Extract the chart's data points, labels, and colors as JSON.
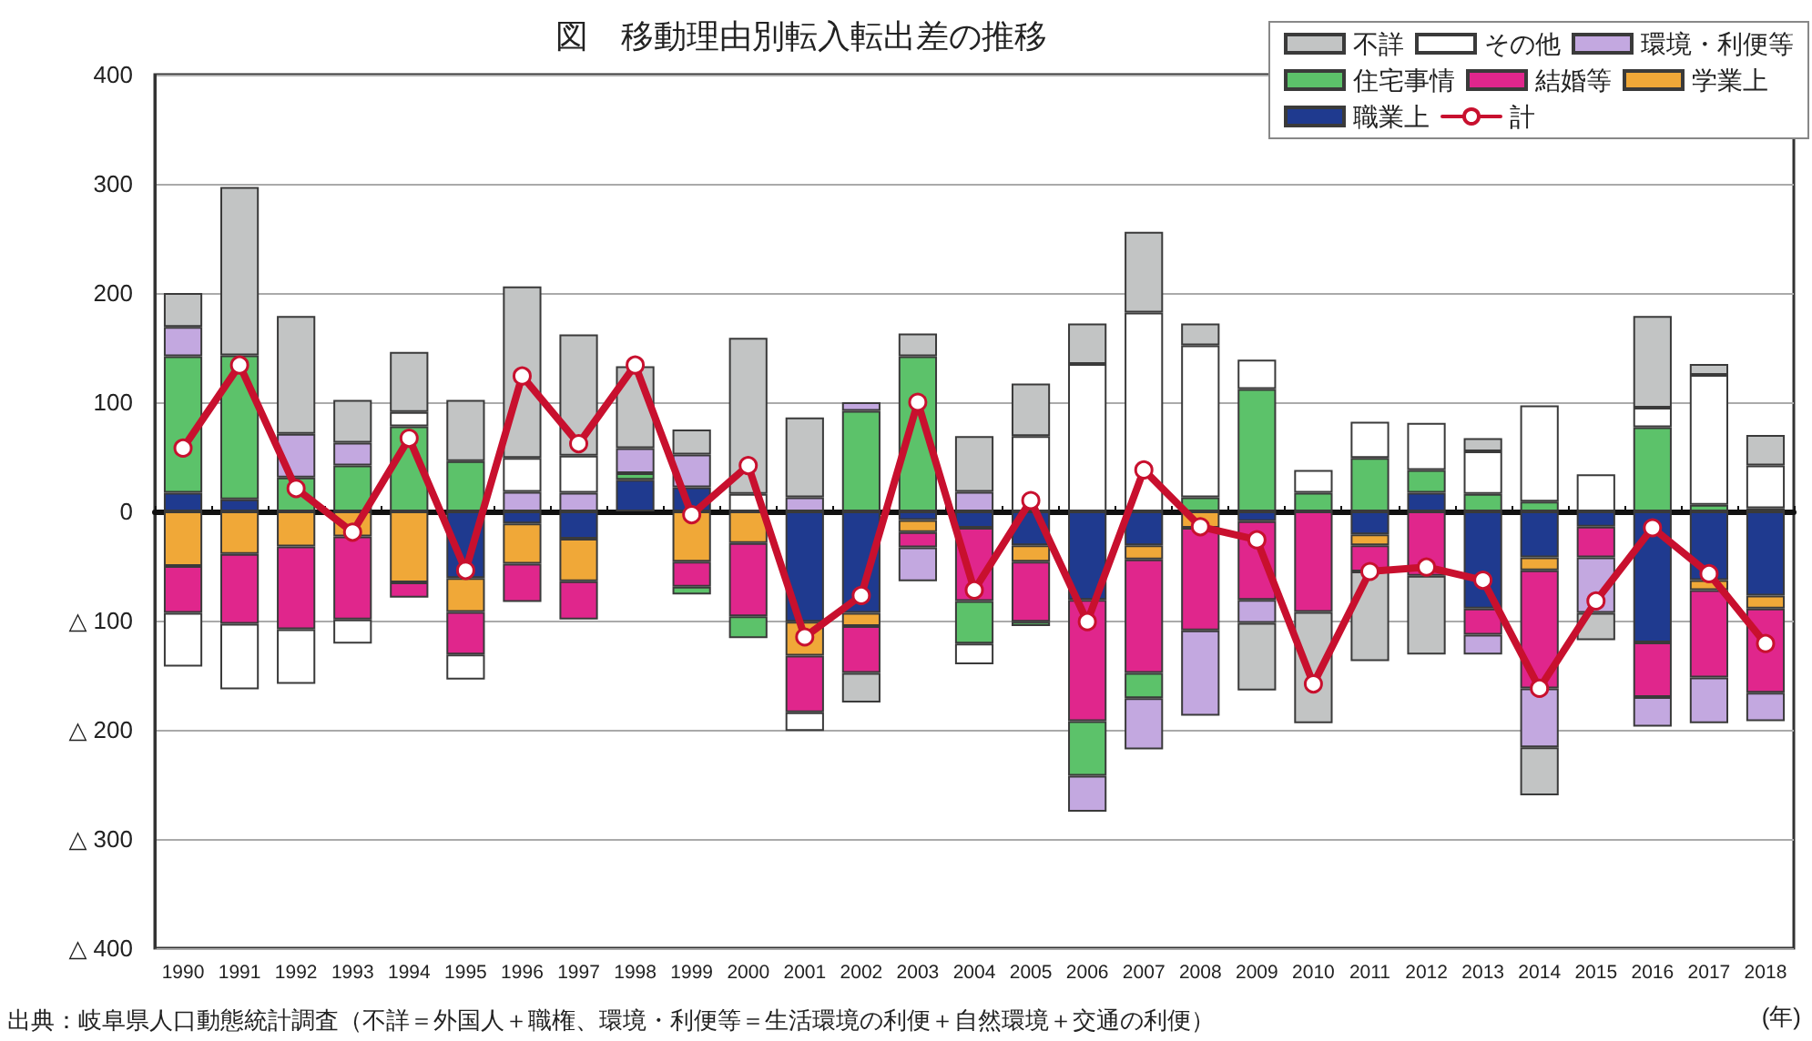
{
  "chart_data": {
    "type": "bar",
    "stacked": true,
    "title": "図　移動理由別転入転出差の推移",
    "xlabel": "(年)",
    "annotations": [
      "出典：岐阜県人口動態統計調査（不詳＝外国人＋職権、環境・利便等＝生活環境の利便＋自然環境＋交通の利便）"
    ],
    "categories": [
      "1990",
      "1991",
      "1992",
      "1993",
      "1994",
      "1995",
      "1996",
      "1997",
      "1998",
      "1999",
      "2000",
      "2001",
      "2002",
      "2003",
      "2004",
      "2005",
      "2006",
      "2007",
      "2008",
      "2009",
      "2010",
      "2011",
      "2012",
      "2013",
      "2014",
      "2015",
      "2016",
      "2017",
      "2018"
    ],
    "series": [
      {
        "name": "職業上",
        "color": "#1f3a8f",
        "values": [
          17,
          11,
          null,
          null,
          null,
          -61,
          -11,
          -25,
          29,
          22,
          null,
          -101,
          -93,
          -8,
          -15,
          -31,
          -81,
          -31,
          null,
          -9,
          null,
          -21,
          17,
          -89,
          -42,
          -14,
          -120,
          -63,
          -77
        ]
      },
      {
        "name": "学業上",
        "color": "#f0a838",
        "values": [
          -50,
          -39,
          -32,
          -23,
          -65,
          -31,
          -37,
          -39,
          null,
          -46,
          -29,
          -31,
          -12,
          -11,
          null,
          -15,
          null,
          -13,
          -15,
          null,
          null,
          -10,
          null,
          null,
          -12,
          null,
          null,
          -9,
          -12
        ]
      },
      {
        "name": "結婚等",
        "color": "#e0268c",
        "values": [
          -43,
          -64,
          -76,
          -76,
          -14,
          -39,
          -35,
          -35,
          null,
          -23,
          -67,
          -52,
          -43,
          -14,
          -67,
          -55,
          -111,
          -104,
          -94,
          -72,
          -92,
          -24,
          -59,
          -24,
          -108,
          -28,
          -50,
          -80,
          -77
        ]
      },
      {
        "name": "住宅事情",
        "color": "#5cc26a",
        "values": [
          125,
          132,
          31,
          42,
          78,
          46,
          null,
          null,
          6,
          -7,
          -20,
          null,
          92,
          142,
          -39,
          -4,
          -50,
          -23,
          13,
          112,
          17,
          49,
          21,
          16,
          9,
          null,
          77,
          6,
          3
        ]
      },
      {
        "name": "環境・利便等",
        "color": "#c3a8e0",
        "values": [
          27,
          null,
          40,
          21,
          null,
          null,
          18,
          17,
          23,
          30,
          null,
          13,
          8,
          -31,
          18,
          null,
          -33,
          -47,
          -78,
          -21,
          null,
          null,
          null,
          -18,
          -54,
          -51,
          -27,
          -42,
          -26
        ]
      },
      {
        "name": "その他",
        "color": "#ffffff",
        "values": [
          -49,
          -60,
          -50,
          -22,
          13,
          -23,
          31,
          34,
          null,
          null,
          16,
          -17,
          null,
          null,
          -19,
          69,
          135,
          182,
          139,
          27,
          21,
          33,
          43,
          39,
          88,
          34,
          18,
          119,
          39
        ]
      },
      {
        "name": "不詳",
        "color": "#c2c4c4",
        "values": [
          31,
          154,
          108,
          39,
          55,
          56,
          157,
          111,
          75,
          23,
          143,
          73,
          -27,
          21,
          51,
          48,
          37,
          74,
          20,
          -62,
          -102,
          -82,
          -72,
          12,
          -44,
          -25,
          84,
          10,
          28
        ]
      },
      {
        "name": "計",
        "type": "line",
        "color": "#c8102e",
        "marker": "circle",
        "values": [
          58,
          134,
          21,
          -19,
          67,
          -54,
          124,
          62,
          134,
          -3,
          42,
          -115,
          -77,
          100,
          -72,
          10,
          -101,
          38,
          -14,
          -26,
          -158,
          -55,
          -51,
          -63,
          -162,
          -82,
          -15,
          -57,
          -121
        ]
      }
    ],
    "ylim": [
      -400,
      400
    ],
    "yticks": [
      {
        "value": -400,
        "label": "△ 400"
      },
      {
        "value": -300,
        "label": "△ 300"
      },
      {
        "value": -200,
        "label": "△ 200"
      },
      {
        "value": -100,
        "label": "△ 100"
      },
      0,
      100,
      200,
      300,
      400
    ],
    "grid": "y",
    "legend": "top right"
  }
}
